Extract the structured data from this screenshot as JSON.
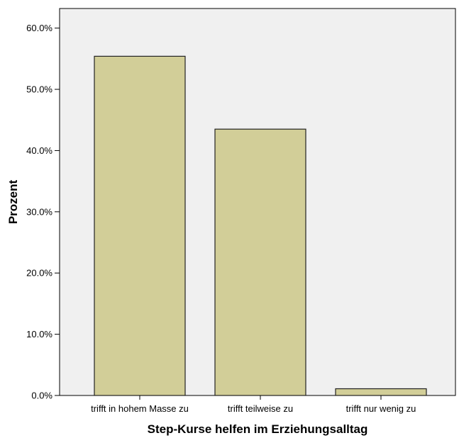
{
  "chart_data": {
    "type": "bar",
    "categories": [
      "trifft in hohem Masse zu",
      "trifft teilweise zu",
      "trifft nur wenig zu"
    ],
    "values": [
      55.4,
      43.5,
      1.1
    ],
    "title": "",
    "xlabel": "Step-Kurse helfen im Erziehungsalltag",
    "ylabel": "Prozent",
    "ylim": [
      0,
      63.2
    ],
    "yticks": [
      0,
      10,
      20,
      30,
      40,
      50,
      60
    ],
    "ytick_labels": [
      "0.0%",
      "10.0%",
      "20.0%",
      "30.0%",
      "40.0%",
      "50.0%",
      "60.0%"
    ],
    "grid": false,
    "legend": "none",
    "colors": {
      "bar_fill": "#D2CE98",
      "bar_stroke": "#222222",
      "plot_background": "#F0F0F0",
      "axis": "#000000"
    }
  }
}
